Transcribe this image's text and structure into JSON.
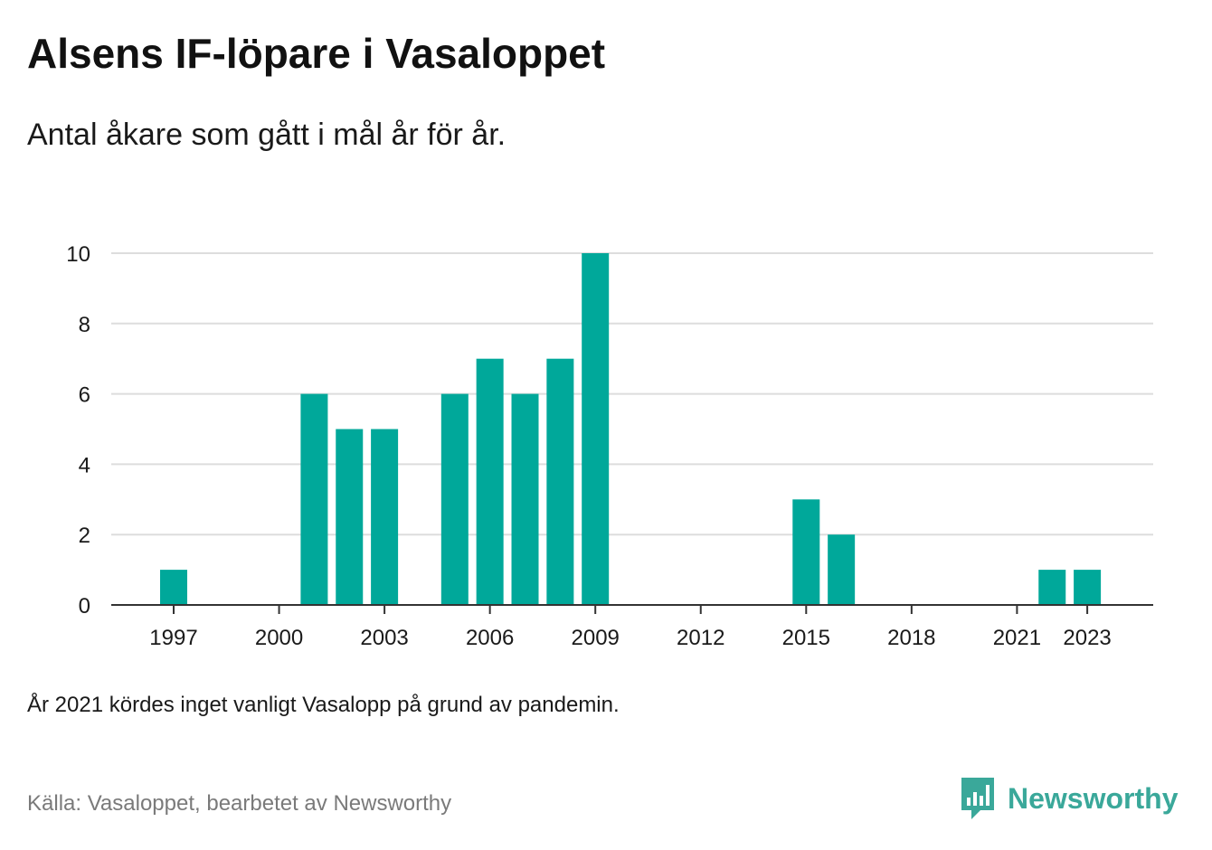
{
  "title": "Alsens IF-löpare i Vasaloppet",
  "subtitle": "Antal åkare som gått i mål år för år.",
  "note": "År 2021 kördes inget vanligt Vasalopp på grund av pandemin.",
  "source": "Källa: Vasaloppet, bearbetet av Newsworthy",
  "brand": {
    "name": "Newsworthy",
    "icon": "newsworthy-logo-icon",
    "color": "#3aa89a"
  },
  "colors": {
    "bar": "#00a89a",
    "grid": "#dddddd",
    "axis": "#333333"
  },
  "chart_data": {
    "type": "bar",
    "categories": [
      "1997",
      "1998",
      "1999",
      "2000",
      "2001",
      "2002",
      "2003",
      "2004",
      "2005",
      "2006",
      "2007",
      "2008",
      "2009",
      "2010",
      "2011",
      "2012",
      "2013",
      "2014",
      "2015",
      "2016",
      "2017",
      "2018",
      "2019",
      "2020",
      "2021",
      "2022",
      "2023"
    ],
    "values": [
      1,
      0,
      0,
      0,
      6,
      5,
      5,
      0,
      6,
      7,
      6,
      7,
      10,
      0,
      0,
      0,
      0,
      0,
      3,
      2,
      0,
      0,
      0,
      0,
      0,
      1,
      1
    ],
    "xticks": [
      "1997",
      "2000",
      "2003",
      "2006",
      "2009",
      "2012",
      "2015",
      "2018",
      "2021",
      "2023"
    ],
    "yticks": [
      0,
      2,
      4,
      6,
      8,
      10
    ],
    "ylim": [
      0,
      10
    ],
    "xlabel": "",
    "ylabel": "",
    "grid": true
  }
}
